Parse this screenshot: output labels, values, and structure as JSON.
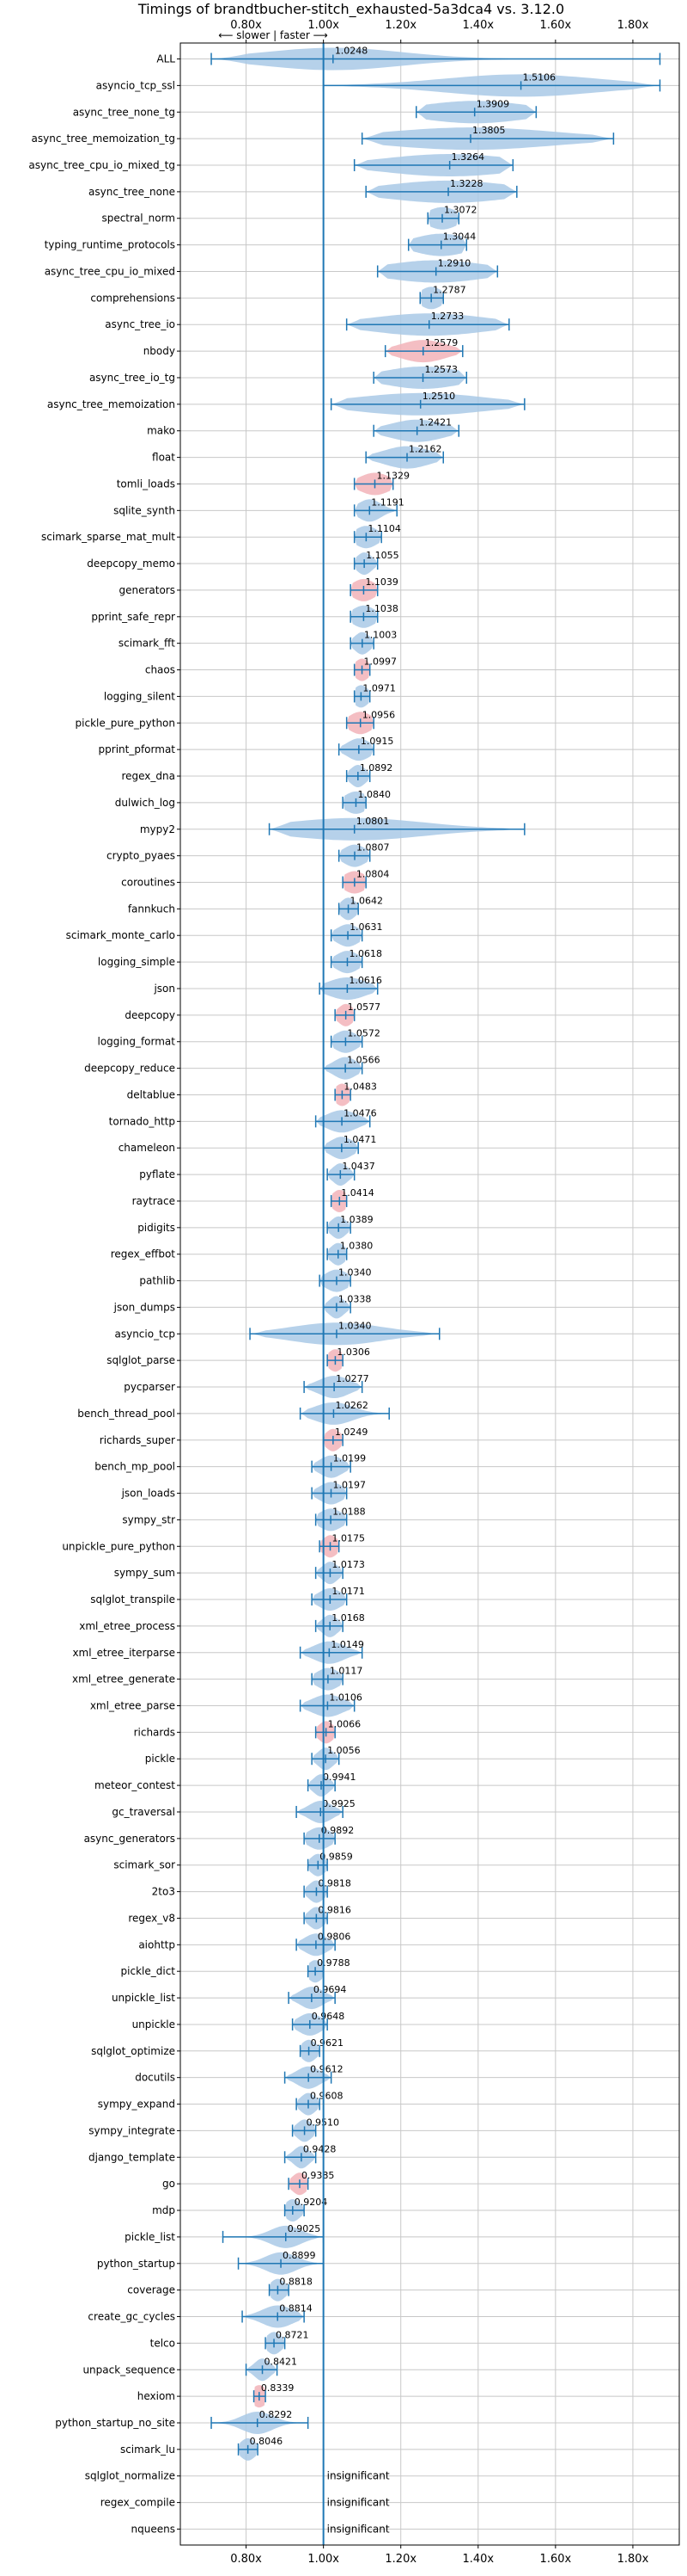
{
  "chart_data": {
    "type": "violin",
    "title": "Timings of brandtbucher-stitch_exhausted-5a3dca4 vs. 3.12.0",
    "direction_label": "⟵ slower | faster ⟶",
    "x_tick_values": [
      0.8,
      1.0,
      1.2,
      1.4,
      1.6,
      1.8
    ],
    "x_tick_labels": [
      "0.80x",
      "1.00x",
      "1.20x",
      "1.40x",
      "1.60x",
      "1.80x"
    ],
    "xlim": [
      0.63,
      1.92
    ],
    "reference_value": 1.0,
    "colors": {
      "violin": "#a9c9e6",
      "highlight": "#f2b3b8",
      "line": "#1f77b4",
      "grid": "#c8c8c8"
    },
    "insignificant_label": "insignificant",
    "benchmarks": [
      {
        "name": "ALL",
        "value": 1.0248,
        "label": "1.0248",
        "lo": 0.71,
        "hi": 1.87,
        "spread": 0.18,
        "hl": false
      },
      {
        "name": "asyncio_tcp_ssl",
        "value": 1.5106,
        "label": "1.5106",
        "lo": 1.0,
        "hi": 1.87,
        "spread": 0.2,
        "hl": false
      },
      {
        "name": "async_tree_none_tg",
        "value": 1.3909,
        "label": "1.3909",
        "lo": 1.24,
        "hi": 1.55,
        "spread": 0.14,
        "hl": false
      },
      {
        "name": "async_tree_memoization_tg",
        "value": 1.3805,
        "label": "1.3805",
        "lo": 1.1,
        "hi": 1.75,
        "spread": 0.22,
        "hl": false
      },
      {
        "name": "async_tree_cpu_io_mixed_tg",
        "value": 1.3264,
        "label": "1.3264",
        "lo": 1.08,
        "hi": 1.49,
        "spread": 0.17,
        "hl": false
      },
      {
        "name": "async_tree_none",
        "value": 1.3228,
        "label": "1.3228",
        "lo": 1.11,
        "hi": 1.5,
        "spread": 0.16,
        "hl": false
      },
      {
        "name": "spectral_norm",
        "value": 1.3072,
        "label": "1.3072",
        "lo": 1.27,
        "hi": 1.35,
        "spread": 0.04,
        "hl": false
      },
      {
        "name": "typing_runtime_protocols",
        "value": 1.3044,
        "label": "1.3044",
        "lo": 1.22,
        "hi": 1.37,
        "spread": 0.07,
        "hl": false
      },
      {
        "name": "async_tree_cpu_io_mixed",
        "value": 1.291,
        "label": "1.2910",
        "lo": 1.14,
        "hi": 1.45,
        "spread": 0.13,
        "hl": false
      },
      {
        "name": "comprehensions",
        "value": 1.2787,
        "label": "1.2787",
        "lo": 1.25,
        "hi": 1.31,
        "spread": 0.03,
        "hl": false
      },
      {
        "name": "async_tree_io",
        "value": 1.2733,
        "label": "1.2733",
        "lo": 1.06,
        "hi": 1.48,
        "spread": 0.15,
        "hl": false
      },
      {
        "name": "nbody",
        "value": 1.2579,
        "label": "1.2579",
        "lo": 1.16,
        "hi": 1.36,
        "spread": 0.06,
        "hl": true
      },
      {
        "name": "async_tree_io_tg",
        "value": 1.2573,
        "label": "1.2573",
        "lo": 1.13,
        "hi": 1.37,
        "spread": 0.1,
        "hl": false
      },
      {
        "name": "async_tree_memoization",
        "value": 1.251,
        "label": "1.2510",
        "lo": 1.02,
        "hi": 1.52,
        "spread": 0.17,
        "hl": false
      },
      {
        "name": "mako",
        "value": 1.2421,
        "label": "1.2421",
        "lo": 1.13,
        "hi": 1.35,
        "spread": 0.07,
        "hl": false
      },
      {
        "name": "float",
        "value": 1.2162,
        "label": "1.2162",
        "lo": 1.11,
        "hi": 1.31,
        "spread": 0.06,
        "hl": false
      },
      {
        "name": "tomli_loads",
        "value": 1.1329,
        "label": "1.1329",
        "lo": 1.08,
        "hi": 1.18,
        "spread": 0.04,
        "hl": true
      },
      {
        "name": "sqlite_synth",
        "value": 1.1191,
        "label": "1.1191",
        "lo": 1.08,
        "hi": 1.19,
        "spread": 0.03,
        "hl": false
      },
      {
        "name": "scimark_sparse_mat_mult",
        "value": 1.1104,
        "label": "1.1104",
        "lo": 1.08,
        "hi": 1.15,
        "spread": 0.03,
        "hl": false
      },
      {
        "name": "deepcopy_memo",
        "value": 1.1055,
        "label": "1.1055",
        "lo": 1.08,
        "hi": 1.14,
        "spread": 0.02,
        "hl": false
      },
      {
        "name": "generators",
        "value": 1.1039,
        "label": "1.1039",
        "lo": 1.07,
        "hi": 1.14,
        "spread": 0.03,
        "hl": true
      },
      {
        "name": "pprint_safe_repr",
        "value": 1.1038,
        "label": "1.1038",
        "lo": 1.07,
        "hi": 1.14,
        "spread": 0.03,
        "hl": false
      },
      {
        "name": "scimark_fft",
        "value": 1.1003,
        "label": "1.1003",
        "lo": 1.07,
        "hi": 1.13,
        "spread": 0.02,
        "hl": false
      },
      {
        "name": "chaos",
        "value": 1.0997,
        "label": "1.0997",
        "lo": 1.08,
        "hi": 1.12,
        "spread": 0.02,
        "hl": true
      },
      {
        "name": "logging_silent",
        "value": 1.0971,
        "label": "1.0971",
        "lo": 1.08,
        "hi": 1.12,
        "spread": 0.02,
        "hl": false
      },
      {
        "name": "pickle_pure_python",
        "value": 1.0956,
        "label": "1.0956",
        "lo": 1.06,
        "hi": 1.13,
        "spread": 0.03,
        "hl": true
      },
      {
        "name": "pprint_pformat",
        "value": 1.0915,
        "label": "1.0915",
        "lo": 1.04,
        "hi": 1.13,
        "spread": 0.03,
        "hl": false
      },
      {
        "name": "regex_dna",
        "value": 1.0892,
        "label": "1.0892",
        "lo": 1.06,
        "hi": 1.12,
        "spread": 0.02,
        "hl": false
      },
      {
        "name": "dulwich_log",
        "value": 1.084,
        "label": "1.0840",
        "lo": 1.05,
        "hi": 1.11,
        "spread": 0.03,
        "hl": false
      },
      {
        "name": "mypy2",
        "value": 1.0801,
        "label": "1.0801",
        "lo": 0.86,
        "hi": 1.52,
        "spread": 0.18,
        "hl": false
      },
      {
        "name": "crypto_pyaes",
        "value": 1.0807,
        "label": "1.0807",
        "lo": 1.04,
        "hi": 1.12,
        "spread": 0.03,
        "hl": false
      },
      {
        "name": "coroutines",
        "value": 1.0804,
        "label": "1.0804",
        "lo": 1.05,
        "hi": 1.11,
        "spread": 0.03,
        "hl": true
      },
      {
        "name": "fannkuch",
        "value": 1.0642,
        "label": "1.0642",
        "lo": 1.04,
        "hi": 1.09,
        "spread": 0.02,
        "hl": false
      },
      {
        "name": "scimark_monte_carlo",
        "value": 1.0631,
        "label": "1.0631",
        "lo": 1.02,
        "hi": 1.1,
        "spread": 0.03,
        "hl": false
      },
      {
        "name": "logging_simple",
        "value": 1.0618,
        "label": "1.0618",
        "lo": 1.02,
        "hi": 1.1,
        "spread": 0.03,
        "hl": false
      },
      {
        "name": "json",
        "value": 1.0616,
        "label": "1.0616",
        "lo": 0.99,
        "hi": 1.14,
        "spread": 0.05,
        "hl": false
      },
      {
        "name": "deepcopy",
        "value": 1.0577,
        "label": "1.0577",
        "lo": 1.03,
        "hi": 1.08,
        "spread": 0.02,
        "hl": true
      },
      {
        "name": "logging_format",
        "value": 1.0572,
        "label": "1.0572",
        "lo": 1.02,
        "hi": 1.1,
        "spread": 0.03,
        "hl": false
      },
      {
        "name": "deepcopy_reduce",
        "value": 1.0566,
        "label": "1.0566",
        "lo": 1.0,
        "hi": 1.1,
        "spread": 0.03,
        "hl": false
      },
      {
        "name": "deltablue",
        "value": 1.0483,
        "label": "1.0483",
        "lo": 1.03,
        "hi": 1.07,
        "spread": 0.02,
        "hl": true
      },
      {
        "name": "tornado_http",
        "value": 1.0476,
        "label": "1.0476",
        "lo": 0.98,
        "hi": 1.12,
        "spread": 0.04,
        "hl": false
      },
      {
        "name": "chameleon",
        "value": 1.0471,
        "label": "1.0471",
        "lo": 1.0,
        "hi": 1.09,
        "spread": 0.03,
        "hl": false
      },
      {
        "name": "pyflate",
        "value": 1.0437,
        "label": "1.0437",
        "lo": 1.01,
        "hi": 1.08,
        "spread": 0.02,
        "hl": false
      },
      {
        "name": "raytrace",
        "value": 1.0414,
        "label": "1.0414",
        "lo": 1.02,
        "hi": 1.06,
        "spread": 0.02,
        "hl": true
      },
      {
        "name": "pidigits",
        "value": 1.0389,
        "label": "1.0389",
        "lo": 1.01,
        "hi": 1.07,
        "spread": 0.02,
        "hl": false
      },
      {
        "name": "regex_effbot",
        "value": 1.038,
        "label": "1.0380",
        "lo": 1.01,
        "hi": 1.06,
        "spread": 0.02,
        "hl": false
      },
      {
        "name": "pathlib",
        "value": 1.034,
        "label": "1.0340",
        "lo": 0.99,
        "hi": 1.07,
        "spread": 0.03,
        "hl": false
      },
      {
        "name": "json_dumps",
        "value": 1.0338,
        "label": "1.0338",
        "lo": 1.0,
        "hi": 1.07,
        "spread": 0.02,
        "hl": false
      },
      {
        "name": "asyncio_tcp",
        "value": 1.034,
        "label": "1.0340",
        "lo": 0.81,
        "hi": 1.3,
        "spread": 0.12,
        "hl": false
      },
      {
        "name": "sqlglot_parse",
        "value": 1.0306,
        "label": "1.0306",
        "lo": 1.01,
        "hi": 1.05,
        "spread": 0.02,
        "hl": true
      },
      {
        "name": "pycparser",
        "value": 1.0277,
        "label": "1.0277",
        "lo": 0.95,
        "hi": 1.1,
        "spread": 0.04,
        "hl": false
      },
      {
        "name": "bench_thread_pool",
        "value": 1.0262,
        "label": "1.0262",
        "lo": 0.94,
        "hi": 1.17,
        "spread": 0.05,
        "hl": false
      },
      {
        "name": "richards_super",
        "value": 1.0249,
        "label": "1.0249",
        "lo": 1.0,
        "hi": 1.05,
        "spread": 0.02,
        "hl": true
      },
      {
        "name": "bench_mp_pool",
        "value": 1.0199,
        "label": "1.0199",
        "lo": 0.97,
        "hi": 1.07,
        "spread": 0.03,
        "hl": false
      },
      {
        "name": "json_loads",
        "value": 1.0197,
        "label": "1.0197",
        "lo": 0.97,
        "hi": 1.06,
        "spread": 0.03,
        "hl": false
      },
      {
        "name": "sympy_str",
        "value": 1.0188,
        "label": "1.0188",
        "lo": 0.98,
        "hi": 1.06,
        "spread": 0.03,
        "hl": false
      },
      {
        "name": "unpickle_pure_python",
        "value": 1.0175,
        "label": "1.0175",
        "lo": 0.99,
        "hi": 1.04,
        "spread": 0.02,
        "hl": true
      },
      {
        "name": "sympy_sum",
        "value": 1.0173,
        "label": "1.0173",
        "lo": 0.98,
        "hi": 1.05,
        "spread": 0.02,
        "hl": false
      },
      {
        "name": "sqlglot_transpile",
        "value": 1.0171,
        "label": "1.0171",
        "lo": 0.97,
        "hi": 1.06,
        "spread": 0.03,
        "hl": false
      },
      {
        "name": "xml_etree_process",
        "value": 1.0168,
        "label": "1.0168",
        "lo": 0.98,
        "hi": 1.05,
        "spread": 0.02,
        "hl": false
      },
      {
        "name": "xml_etree_iterparse",
        "value": 1.0149,
        "label": "1.0149",
        "lo": 0.94,
        "hi": 1.1,
        "spread": 0.04,
        "hl": false
      },
      {
        "name": "xml_etree_generate",
        "value": 1.0117,
        "label": "1.0117",
        "lo": 0.97,
        "hi": 1.05,
        "spread": 0.03,
        "hl": false
      },
      {
        "name": "xml_etree_parse",
        "value": 1.0106,
        "label": "1.0106",
        "lo": 0.94,
        "hi": 1.08,
        "spread": 0.04,
        "hl": false
      },
      {
        "name": "richards",
        "value": 1.0066,
        "label": "1.0066",
        "lo": 0.98,
        "hi": 1.03,
        "spread": 0.02,
        "hl": true
      },
      {
        "name": "pickle",
        "value": 1.0056,
        "label": "1.0056",
        "lo": 0.97,
        "hi": 1.04,
        "spread": 0.02,
        "hl": false
      },
      {
        "name": "meteor_contest",
        "value": 0.9941,
        "label": "0.9941",
        "lo": 0.96,
        "hi": 1.03,
        "spread": 0.02,
        "hl": false
      },
      {
        "name": "gc_traversal",
        "value": 0.9925,
        "label": "0.9925",
        "lo": 0.93,
        "hi": 1.05,
        "spread": 0.03,
        "hl": false
      },
      {
        "name": "async_generators",
        "value": 0.9892,
        "label": "0.9892",
        "lo": 0.95,
        "hi": 1.03,
        "spread": 0.03,
        "hl": false
      },
      {
        "name": "scimark_sor",
        "value": 0.9859,
        "label": "0.9859",
        "lo": 0.96,
        "hi": 1.01,
        "spread": 0.02,
        "hl": false
      },
      {
        "name": "2to3",
        "value": 0.9818,
        "label": "0.9818",
        "lo": 0.95,
        "hi": 1.01,
        "spread": 0.02,
        "hl": false
      },
      {
        "name": "regex_v8",
        "value": 0.9816,
        "label": "0.9816",
        "lo": 0.95,
        "hi": 1.01,
        "spread": 0.02,
        "hl": false
      },
      {
        "name": "aiohttp",
        "value": 0.9806,
        "label": "0.9806",
        "lo": 0.93,
        "hi": 1.03,
        "spread": 0.03,
        "hl": false
      },
      {
        "name": "pickle_dict",
        "value": 0.9788,
        "label": "0.9788",
        "lo": 0.96,
        "hi": 1.0,
        "spread": 0.02,
        "hl": false
      },
      {
        "name": "unpickle_list",
        "value": 0.9694,
        "label": "0.9694",
        "lo": 0.91,
        "hi": 1.03,
        "spread": 0.03,
        "hl": false
      },
      {
        "name": "unpickle",
        "value": 0.9648,
        "label": "0.9648",
        "lo": 0.92,
        "hi": 1.01,
        "spread": 0.03,
        "hl": false
      },
      {
        "name": "sqlglot_optimize",
        "value": 0.9621,
        "label": "0.9621",
        "lo": 0.94,
        "hi": 0.99,
        "spread": 0.02,
        "hl": false
      },
      {
        "name": "docutils",
        "value": 0.9612,
        "label": "0.9612",
        "lo": 0.9,
        "hi": 1.02,
        "spread": 0.03,
        "hl": false
      },
      {
        "name": "sympy_expand",
        "value": 0.9608,
        "label": "0.9608",
        "lo": 0.93,
        "hi": 0.99,
        "spread": 0.02,
        "hl": false
      },
      {
        "name": "sympy_integrate",
        "value": 0.951,
        "label": "0.9510",
        "lo": 0.92,
        "hi": 0.98,
        "spread": 0.02,
        "hl": false
      },
      {
        "name": "django_template",
        "value": 0.9428,
        "label": "0.9428",
        "lo": 0.9,
        "hi": 0.98,
        "spread": 0.02,
        "hl": false
      },
      {
        "name": "go",
        "value": 0.9385,
        "label": "0.9385",
        "lo": 0.91,
        "hi": 0.96,
        "spread": 0.02,
        "hl": true
      },
      {
        "name": "mdp",
        "value": 0.9204,
        "label": "0.9204",
        "lo": 0.9,
        "hi": 0.95,
        "spread": 0.02,
        "hl": false
      },
      {
        "name": "pickle_list",
        "value": 0.9025,
        "label": "0.9025",
        "lo": 0.74,
        "hi": 1.0,
        "spread": 0.04,
        "hl": false
      },
      {
        "name": "python_startup",
        "value": 0.8899,
        "label": "0.8899",
        "lo": 0.78,
        "hi": 1.0,
        "spread": 0.04,
        "hl": false
      },
      {
        "name": "coverage",
        "value": 0.8818,
        "label": "0.8818",
        "lo": 0.86,
        "hi": 0.91,
        "spread": 0.02,
        "hl": false
      },
      {
        "name": "create_gc_cycles",
        "value": 0.8814,
        "label": "0.8814",
        "lo": 0.79,
        "hi": 0.95,
        "spread": 0.04,
        "hl": false
      },
      {
        "name": "telco",
        "value": 0.8721,
        "label": "0.8721",
        "lo": 0.85,
        "hi": 0.9,
        "spread": 0.02,
        "hl": false
      },
      {
        "name": "unpack_sequence",
        "value": 0.8421,
        "label": "0.8421",
        "lo": 0.8,
        "hi": 0.88,
        "spread": 0.02,
        "hl": false
      },
      {
        "name": "hexiom",
        "value": 0.8339,
        "label": "0.8339",
        "lo": 0.82,
        "hi": 0.85,
        "spread": 0.02,
        "hl": true
      },
      {
        "name": "python_startup_no_site",
        "value": 0.8292,
        "label": "0.8292",
        "lo": 0.71,
        "hi": 0.96,
        "spread": 0.04,
        "hl": false
      },
      {
        "name": "scimark_lu",
        "value": 0.8046,
        "label": "0.8046",
        "lo": 0.78,
        "hi": 0.83,
        "spread": 0.02,
        "hl": false
      },
      {
        "name": "sqlglot_normalize",
        "value": null,
        "label": "",
        "insignificant": true
      },
      {
        "name": "regex_compile",
        "value": null,
        "label": "",
        "insignificant": true
      },
      {
        "name": "nqueens",
        "value": null,
        "label": "",
        "insignificant": true
      }
    ]
  }
}
